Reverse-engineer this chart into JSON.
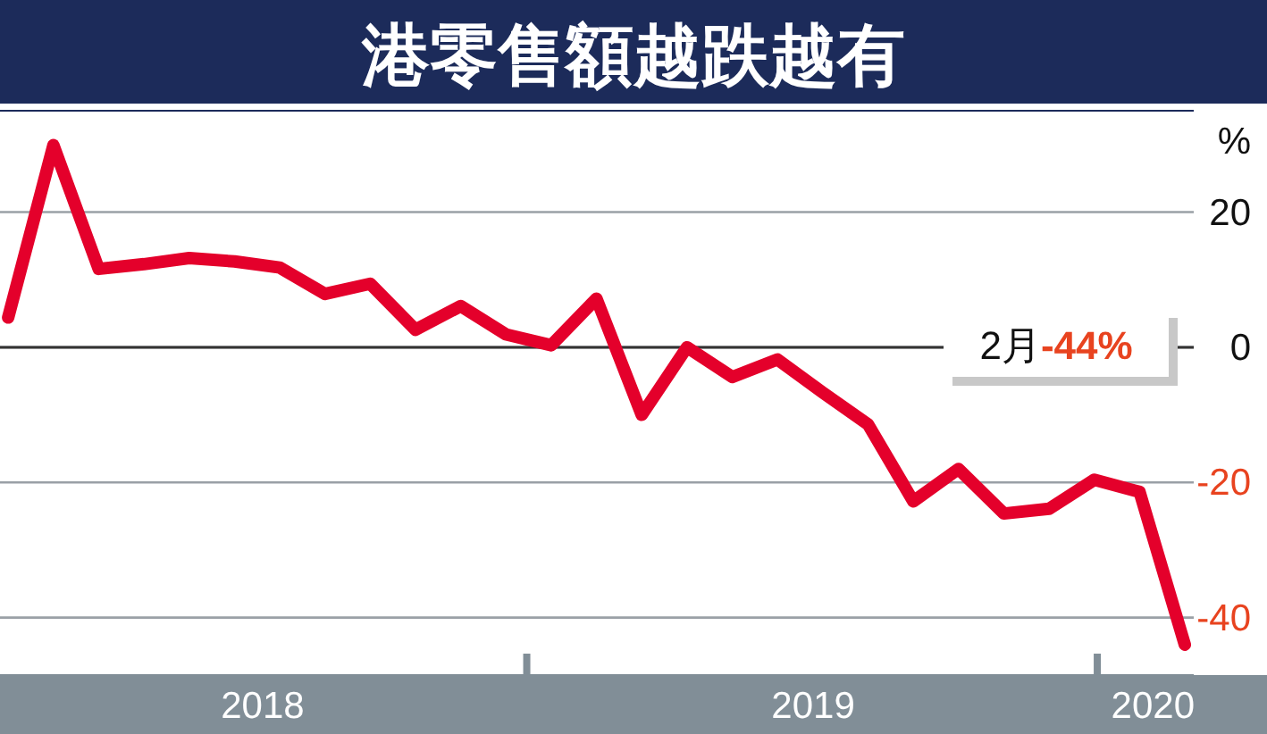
{
  "chart_data": {
    "type": "line",
    "title": "港零售額越跌越有",
    "ylabel": "%",
    "x": [
      "2017-12",
      "2018-01",
      "2018-02",
      "2018-03",
      "2018-04",
      "2018-05",
      "2018-06",
      "2018-07",
      "2018-08",
      "2018-09",
      "2018-10",
      "2018-11",
      "2018-12",
      "2019-01",
      "2019-02",
      "2019-03",
      "2019-04",
      "2019-05",
      "2019-06",
      "2019-07",
      "2019-08",
      "2019-09",
      "2019-10",
      "2019-11",
      "2019-12",
      "2020-01",
      "2020-02"
    ],
    "series": [
      {
        "color": "#e4002b",
        "values": [
          4.4,
          29.9,
          11.6,
          12.3,
          13.2,
          12.7,
          11.8,
          7.9,
          9.4,
          2.6,
          6.1,
          1.9,
          0.3,
          7.2,
          -10,
          0,
          -4.4,
          -1.8,
          -6.7,
          -11.4,
          -22.8,
          -18,
          -24.6,
          -23.9,
          -19.6,
          -21.4,
          -44
        ]
      }
    ],
    "xlim": [
      "2017-11-26",
      "2020-02-07"
    ],
    "xticks": [
      {
        "value": "2018-05-20",
        "label": "2018"
      },
      {
        "value": "2018-11-15",
        "label": null
      },
      {
        "value": "2019-05-25",
        "label": "2019"
      },
      {
        "value": "2019-12-03",
        "label": null
      },
      {
        "value": "2020-01-10",
        "label": "2020"
      }
    ],
    "ylim": [
      -48.5,
      35
    ],
    "yticks": [
      -40,
      -20,
      0,
      20
    ],
    "grid": "y",
    "ref_lines": [
      {
        "axis": "y",
        "value": 0,
        "color": "#333333"
      }
    ],
    "annotations": [
      "2月",
      "-44%"
    ],
    "marker": "none",
    "line_style": "solid"
  }
}
